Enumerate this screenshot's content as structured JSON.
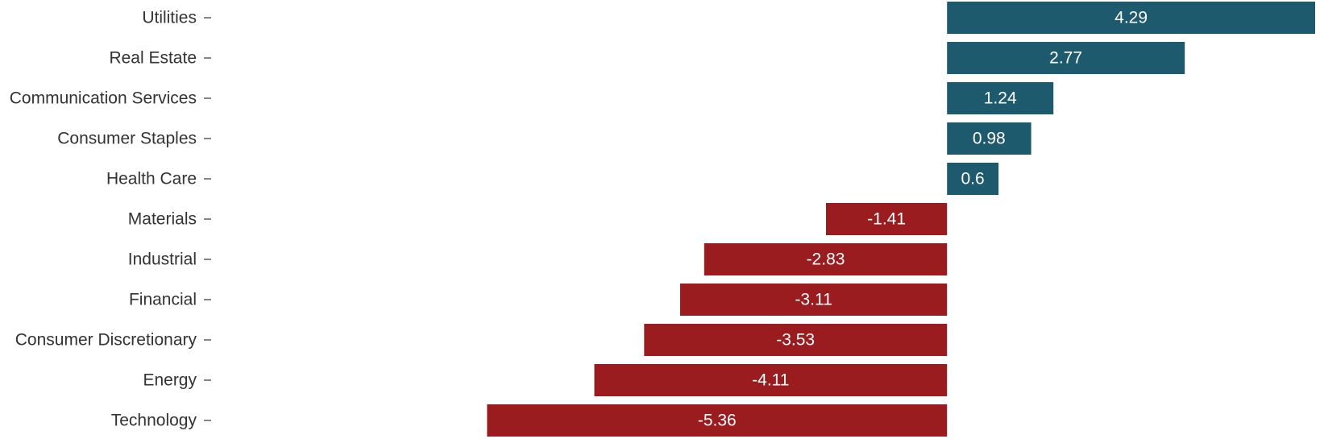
{
  "chart_data": {
    "type": "bar",
    "orientation": "horizontal",
    "title": "",
    "xlabel": "",
    "ylabel": "",
    "grid": false,
    "legend": "none",
    "categories": [
      "Utilities",
      "Real Estate",
      "Communication Services",
      "Consumer Staples",
      "Health Care",
      "Materials",
      "Industrial",
      "Financial",
      "Consumer Discretionary",
      "Energy",
      "Technology"
    ],
    "values": [
      4.29,
      2.77,
      1.24,
      0.98,
      0.6,
      -1.41,
      -2.83,
      -3.11,
      -3.53,
      -4.11,
      -5.36
    ],
    "labels": [
      "4.29",
      "2.77",
      "1.24",
      "0.98",
      "0.6",
      "-1.41",
      "-2.83",
      "-3.11",
      "-3.53",
      "-4.11",
      "-5.36"
    ],
    "xlim": [
      -8.5,
      4.29
    ],
    "colors": {
      "positive": "#1e5a6e",
      "negative": "#9b1c1f",
      "label_text": "#ffffff",
      "category_text": "#333333"
    }
  }
}
